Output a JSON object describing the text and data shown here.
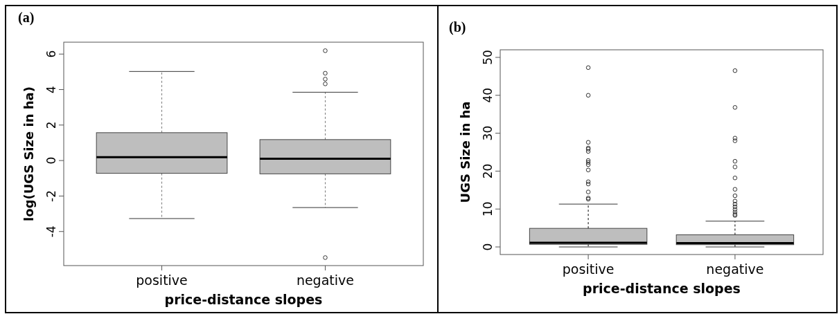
{
  "chart_data": [
    {
      "type": "box",
      "title": "(a)",
      "xlabel": "price-distance slopes",
      "ylabel": "log(UGS Size in ha)",
      "categories": [
        "positive",
        "negative"
      ],
      "color": "#bebebe",
      "ylim": [
        -5.92,
        6.67
      ],
      "yticks": [
        -4,
        -2,
        0,
        2,
        4,
        6
      ],
      "boxes": [
        {
          "low": -3.27,
          "q1": -0.72,
          "median": 0.19,
          "q3": 1.57,
          "high": 5.02
        },
        {
          "low": -2.65,
          "q1": -0.75,
          "median": 0.1,
          "q3": 1.18,
          "high": 3.85,
          "outliers": [
            6.19,
            4.92,
            4.59,
            4.32,
            -5.47
          ]
        }
      ]
    },
    {
      "type": "box",
      "title": "(b)",
      "xlabel": "price-distance slopes",
      "ylabel": "UGS Size in ha",
      "categories": [
        "positive",
        "negative"
      ],
      "color": "#bebebe",
      "ylim": [
        -2,
        52
      ],
      "yticks": [
        0,
        10,
        20,
        30,
        40,
        50
      ],
      "boxes": [
        {
          "low": 0,
          "q1": 0.7,
          "median": 1.1,
          "q3": 4.9,
          "high": 11.3,
          "outliers": [
            47.3,
            40.0,
            27.6,
            26.1,
            25.8,
            25.2,
            22.8,
            22.3,
            21.7,
            20.3,
            17.2,
            16.6,
            14.5,
            12.9,
            12.6
          ]
        },
        {
          "low": 0,
          "q1": 0.6,
          "median": 1.0,
          "q3": 3.2,
          "high": 6.8,
          "outliers": [
            46.5,
            36.8,
            28.7,
            28.0,
            22.6,
            21.1,
            18.2,
            15.2,
            13.5,
            12.1,
            11.3,
            10.6,
            9.9,
            9.2,
            8.6,
            8.3
          ]
        }
      ]
    }
  ]
}
